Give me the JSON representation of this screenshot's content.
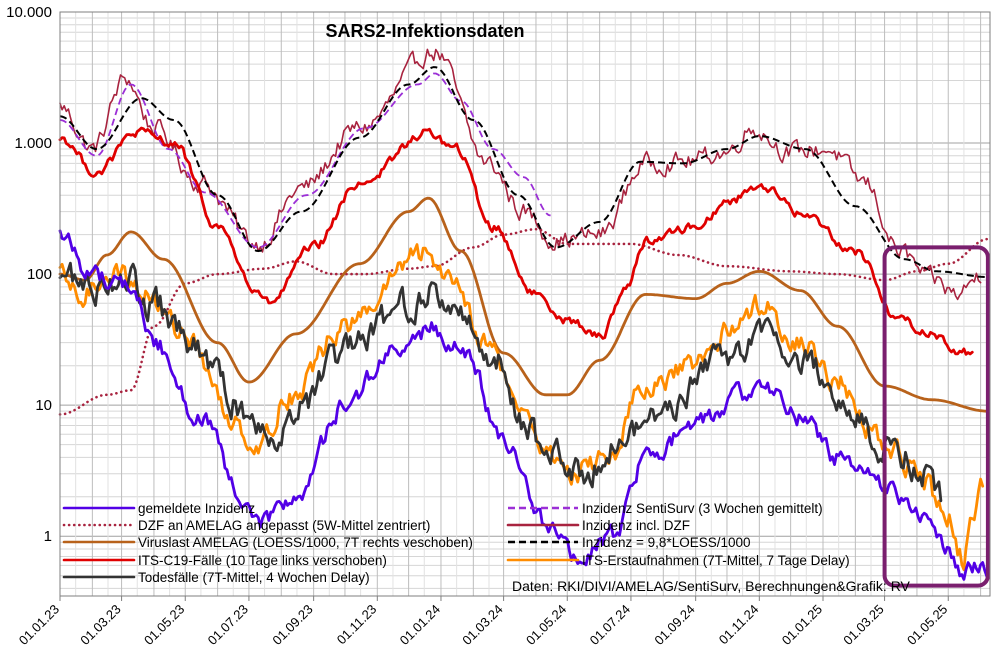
{
  "chart_data": {
    "type": "line",
    "title": "SARS2-Infektionsdaten",
    "y_scale": "log",
    "ylim": [
      0.35,
      10000
    ],
    "y_ticks": [
      1,
      10,
      100,
      1000,
      10000
    ],
    "y_tick_labels": [
      "1",
      "10",
      "100",
      "1.000",
      "10.000"
    ],
    "x_range": [
      "2023-01-01",
      "2025-06-10"
    ],
    "x_ticks": [
      "2023-01-01",
      "2023-03-01",
      "2023-05-01",
      "2023-07-01",
      "2023-09-01",
      "2023-11-01",
      "2024-01-01",
      "2024-03-01",
      "2024-05-01",
      "2024-07-01",
      "2024-09-01",
      "2024-11-01",
      "2025-01-01",
      "2025-03-01",
      "2025-05-01"
    ],
    "x_tick_labels": [
      "01.01.23",
      "01.03.23",
      "01.05.23",
      "01.07.23",
      "01.09.23",
      "01.11.23",
      "01.01.24",
      "01.03.24",
      "01.05.24",
      "01.07.24",
      "01.09.24",
      "01.11.24",
      "01.01.25",
      "01.03.25",
      "01.05.25"
    ],
    "grid": true,
    "legend_position": "bottom",
    "credit": "Daten: RKI/DIVI/AMELAG/SentiSurv, Berechnungen&Grafik: RV",
    "highlight_box": {
      "x_start": "2025-03-01",
      "x_end": "2025-06-08",
      "y_min": 0.42,
      "y_max": 160,
      "color": "#7a1f6e"
    },
    "series": [
      {
        "name": "Inzidenz incl. DZF",
        "color": "#a8233f",
        "style": "solid",
        "width": 1.6,
        "noise": 0.12,
        "points": [
          [
            "2023-01-01",
            1900
          ],
          [
            "2023-02-01",
            900
          ],
          [
            "2023-03-05",
            3100
          ],
          [
            "2023-04-01",
            1300
          ],
          [
            "2023-05-15",
            500
          ],
          [
            "2023-07-10",
            170
          ],
          [
            "2023-08-20",
            450
          ],
          [
            "2023-10-15",
            1300
          ],
          [
            "2023-12-26",
            5000
          ],
          [
            "2024-02-15",
            700
          ],
          [
            "2024-03-20",
            300
          ],
          [
            "2024-04-20",
            180
          ],
          [
            "2024-06-01",
            200
          ],
          [
            "2024-07-15",
            700
          ],
          [
            "2024-08-20",
            720
          ],
          [
            "2024-10-01",
            850
          ],
          [
            "2024-10-25",
            1300
          ],
          [
            "2024-12-01",
            850
          ],
          [
            "2025-01-05",
            900
          ],
          [
            "2025-02-10",
            500
          ],
          [
            "2025-03-15",
            150
          ],
          [
            "2025-04-15",
            90
          ],
          [
            "2025-05-10",
            70
          ],
          [
            "2025-06-01",
            100
          ]
        ]
      },
      {
        "name": "Inzidenz SentiSurv (3 Wochen gemittelt)",
        "color": "#9b2fd6",
        "style": "dashed",
        "width": 1.8,
        "noise": 0,
        "points": [
          [
            "2023-01-01",
            1500
          ],
          [
            "2023-02-05",
            800
          ],
          [
            "2023-03-10",
            2800
          ],
          [
            "2023-04-15",
            900
          ],
          [
            "2023-05-20",
            420
          ],
          [
            "2023-07-10",
            160
          ],
          [
            "2023-08-25",
            400
          ],
          [
            "2023-10-20",
            1300
          ],
          [
            "2023-12-10",
            2800
          ],
          [
            "2023-12-26",
            3400
          ],
          [
            "2024-01-20",
            2100
          ],
          [
            "2024-02-20",
            900
          ],
          [
            "2024-03-20",
            550
          ],
          [
            "2024-04-15",
            280
          ]
        ]
      },
      {
        "name": "Inzidenz = 9,8*LOESS/1000",
        "color": "#000000",
        "style": "dashed",
        "width": 2.0,
        "noise": 0,
        "points": [
          [
            "2023-01-01",
            1600
          ],
          [
            "2023-02-05",
            900
          ],
          [
            "2023-03-20",
            2200
          ],
          [
            "2023-04-20",
            1500
          ],
          [
            "2023-06-01",
            400
          ],
          [
            "2023-07-10",
            150
          ],
          [
            "2023-08-20",
            300
          ],
          [
            "2023-10-15",
            1100
          ],
          [
            "2023-12-01",
            2800
          ],
          [
            "2023-12-26",
            3800
          ],
          [
            "2024-02-01",
            1500
          ],
          [
            "2024-03-15",
            400
          ],
          [
            "2024-04-20",
            160
          ],
          [
            "2024-06-01",
            250
          ],
          [
            "2024-07-10",
            720
          ],
          [
            "2024-08-20",
            700
          ],
          [
            "2024-10-01",
            900
          ],
          [
            "2024-11-01",
            1130
          ],
          [
            "2024-12-15",
            900
          ],
          [
            "2025-02-01",
            330
          ],
          [
            "2025-03-20",
            130
          ],
          [
            "2025-04-20",
            105
          ],
          [
            "2025-06-08",
            95
          ]
        ]
      },
      {
        "name": "DZF an AMELAG angepasst (5W-Mittel zentriert)",
        "color": "#a8233f",
        "style": "dotted",
        "width": 2.6,
        "noise": 0,
        "points": [
          [
            "2023-01-01",
            8.5
          ],
          [
            "2023-02-15",
            12
          ],
          [
            "2023-03-10",
            13
          ],
          [
            "2023-04-01",
            40
          ],
          [
            "2023-05-01",
            85
          ],
          [
            "2023-06-01",
            100
          ],
          [
            "2023-07-15",
            110
          ],
          [
            "2023-08-15",
            125
          ],
          [
            "2023-09-20",
            100
          ],
          [
            "2023-10-20",
            100
          ],
          [
            "2023-12-01",
            110
          ],
          [
            "2023-12-26",
            115
          ],
          [
            "2024-02-01",
            160
          ],
          [
            "2024-03-01",
            200
          ],
          [
            "2024-04-01",
            220
          ],
          [
            "2024-05-01",
            170
          ],
          [
            "2024-07-01",
            170
          ],
          [
            "2024-08-15",
            140
          ],
          [
            "2024-10-01",
            115
          ],
          [
            "2024-12-01",
            105
          ],
          [
            "2025-01-15",
            100
          ],
          [
            "2025-03-01",
            90
          ],
          [
            "2025-04-01",
            105
          ],
          [
            "2025-05-01",
            120
          ],
          [
            "2025-06-08",
            185
          ]
        ]
      },
      {
        "name": "ITS-C19-Fälle (10 Tage links verschoben)",
        "color": "#e00000",
        "style": "solid",
        "width": 2.8,
        "noise": 0.06,
        "points": [
          [
            "2023-01-01",
            1100
          ],
          [
            "2023-02-05",
            600
          ],
          [
            "2023-03-15",
            1200
          ],
          [
            "2023-04-20",
            1000
          ],
          [
            "2023-06-01",
            230
          ],
          [
            "2023-07-10",
            70
          ],
          [
            "2023-07-20",
            60
          ],
          [
            "2023-09-01",
            160
          ],
          [
            "2023-10-15",
            500
          ],
          [
            "2023-12-20",
            1200
          ],
          [
            "2024-01-15",
            900
          ],
          [
            "2024-02-20",
            230
          ],
          [
            "2024-04-01",
            70
          ],
          [
            "2024-05-01",
            45
          ],
          [
            "2024-06-01",
            33
          ],
          [
            "2024-06-25",
            75
          ],
          [
            "2024-07-15",
            180
          ],
          [
            "2024-09-01",
            230
          ],
          [
            "2024-10-01",
            350
          ],
          [
            "2024-11-01",
            480
          ],
          [
            "2024-12-15",
            280
          ],
          [
            "2025-02-01",
            150
          ],
          [
            "2025-03-15",
            45
          ],
          [
            "2025-04-15",
            35
          ],
          [
            "2025-05-15",
            25
          ],
          [
            "2025-05-25",
            24
          ]
        ]
      },
      {
        "name": "Viruslast AMELAG (LOESS/1000, 7T rechts veschoben)",
        "color": "#b8621b",
        "style": "solid",
        "width": 2.8,
        "noise": 0,
        "points": [
          [
            "2023-01-01",
            100
          ],
          [
            "2023-01-25",
            90
          ],
          [
            "2023-02-15",
            140
          ],
          [
            "2023-03-10",
            210
          ],
          [
            "2023-04-10",
            130
          ],
          [
            "2023-06-01",
            30
          ],
          [
            "2023-07-01",
            15
          ],
          [
            "2023-08-15",
            35
          ],
          [
            "2023-10-15",
            120
          ],
          [
            "2023-12-01",
            300
          ],
          [
            "2023-12-20",
            380
          ],
          [
            "2024-01-20",
            150
          ],
          [
            "2024-03-01",
            25
          ],
          [
            "2024-04-10",
            12
          ],
          [
            "2024-05-01",
            12
          ],
          [
            "2024-06-01",
            22
          ],
          [
            "2024-07-15",
            70
          ],
          [
            "2024-09-01",
            65
          ],
          [
            "2024-10-01",
            85
          ],
          [
            "2024-11-01",
            105
          ],
          [
            "2024-12-10",
            75
          ],
          [
            "2025-01-15",
            40
          ],
          [
            "2025-03-01",
            14
          ],
          [
            "2025-04-15",
            11
          ],
          [
            "2025-06-08",
            9
          ]
        ]
      },
      {
        "name": "ITS-Erstaufnahmen (7T-Mittel, 7 Tage Delay)",
        "color": "#ff8c00",
        "style": "solid",
        "width": 2.8,
        "noise": 0.15,
        "points": [
          [
            "2023-01-01",
            95
          ],
          [
            "2023-01-20",
            65
          ],
          [
            "2023-02-20",
            110
          ],
          [
            "2023-03-20",
            75
          ],
          [
            "2023-05-01",
            35
          ],
          [
            "2023-06-15",
            8
          ],
          [
            "2023-07-10",
            5
          ],
          [
            "2023-08-10",
            12
          ],
          [
            "2023-10-01",
            40
          ],
          [
            "2023-12-15",
            140
          ],
          [
            "2024-01-10",
            100
          ],
          [
            "2024-02-15",
            30
          ],
          [
            "2024-03-15",
            10
          ],
          [
            "2024-04-15",
            4
          ],
          [
            "2024-05-10",
            3
          ],
          [
            "2024-06-10",
            4
          ],
          [
            "2024-07-10",
            12
          ],
          [
            "2024-09-01",
            20
          ],
          [
            "2024-10-01",
            35
          ],
          [
            "2024-11-01",
            60
          ],
          [
            "2024-12-15",
            28
          ],
          [
            "2025-01-15",
            15
          ],
          [
            "2025-03-01",
            5
          ],
          [
            "2025-04-01",
            3
          ],
          [
            "2025-05-01",
            1.5
          ],
          [
            "2025-05-15",
            0.7
          ],
          [
            "2025-05-25",
            1.2
          ],
          [
            "2025-06-03",
            2.2
          ]
        ]
      },
      {
        "name": "Todesfälle (7T-Mittel, 4 Wochen Delay)",
        "color": "#333333",
        "style": "solid",
        "width": 2.8,
        "noise": 0.2,
        "points": [
          [
            "2023-01-01",
            100
          ],
          [
            "2023-02-01",
            80
          ],
          [
            "2023-03-01",
            100
          ],
          [
            "2023-04-01",
            55
          ],
          [
            "2023-05-15",
            25
          ],
          [
            "2023-06-20",
            10
          ],
          [
            "2023-07-20",
            6
          ],
          [
            "2023-08-15",
            9
          ],
          [
            "2023-10-01",
            25
          ],
          [
            "2023-12-01",
            60
          ],
          [
            "2023-12-26",
            70
          ],
          [
            "2024-01-25",
            45
          ],
          [
            "2024-02-25",
            20
          ],
          [
            "2024-03-20",
            8
          ],
          [
            "2024-04-15",
            4
          ],
          [
            "2024-05-15",
            3
          ],
          [
            "2024-06-15",
            5
          ],
          [
            "2024-08-01",
            9
          ],
          [
            "2024-10-01",
            25
          ],
          [
            "2024-11-01",
            35
          ],
          [
            "2024-12-15",
            22
          ],
          [
            "2025-02-01",
            8
          ],
          [
            "2025-03-01",
            5
          ],
          [
            "2025-04-01",
            3.5
          ],
          [
            "2025-04-25",
            2
          ]
        ]
      },
      {
        "name": "gemeldete Inzidenz",
        "color": "#5200e6",
        "style": "solid",
        "width": 2.8,
        "noise": 0.12,
        "points": [
          [
            "2023-01-01",
            200
          ],
          [
            "2023-02-01",
            100
          ],
          [
            "2023-03-10",
            80
          ],
          [
            "2023-04-01",
            30
          ],
          [
            "2023-05-15",
            8
          ],
          [
            "2023-07-01",
            1.5
          ],
          [
            "2023-07-15",
            1.3
          ],
          [
            "2023-08-15",
            2
          ],
          [
            "2023-10-01",
            10
          ],
          [
            "2023-11-15",
            25
          ],
          [
            "2023-12-26",
            38
          ],
          [
            "2024-01-25",
            24
          ],
          [
            "2024-03-01",
            5
          ],
          [
            "2024-04-15",
            1.2
          ],
          [
            "2024-05-10",
            0.65
          ],
          [
            "2024-06-15",
            1
          ],
          [
            "2024-07-15",
            4
          ],
          [
            "2024-09-01",
            7
          ],
          [
            "2024-10-15",
            12
          ],
          [
            "2024-11-01",
            15
          ],
          [
            "2024-12-15",
            8
          ],
          [
            "2025-01-15",
            4
          ],
          [
            "2025-03-01",
            2.5
          ],
          [
            "2025-04-01",
            1.5
          ],
          [
            "2025-05-01",
            0.8
          ],
          [
            "2025-05-15",
            0.55
          ],
          [
            "2025-06-08",
            0.58
          ]
        ]
      }
    ],
    "legend": [
      {
        "label": "gemeldete Inzidenz",
        "color": "#5200e6",
        "style": "solid"
      },
      {
        "label": "Inzidenz SentiSurv (3 Wochen gemittelt)",
        "color": "#9b2fd6",
        "style": "dashed"
      },
      {
        "label": "DZF an AMELAG angepasst (5W-Mittel zentriert)",
        "color": "#a8233f",
        "style": "dotted"
      },
      {
        "label": "Inzidenz incl. DZF",
        "color": "#a8233f",
        "style": "solid"
      },
      {
        "label": "Viruslast AMELAG (LOESS/1000, 7T rechts veschoben)",
        "color": "#b8621b",
        "style": "solid"
      },
      {
        "label": "Inzidenz = 9,8*LOESS/1000",
        "color": "#000000",
        "style": "dashed"
      },
      {
        "label": "ITS-C19-Fälle (10 Tage links verschoben)",
        "color": "#e00000",
        "style": "solid"
      },
      {
        "label": "ITS-Erstaufnahmen (7T-Mittel, 7 Tage Delay)",
        "color": "#ff8c00",
        "style": "solid"
      },
      {
        "label": "Todesfälle (7T-Mittel, 4 Wochen Delay)",
        "color": "#333333",
        "style": "solid"
      }
    ]
  }
}
